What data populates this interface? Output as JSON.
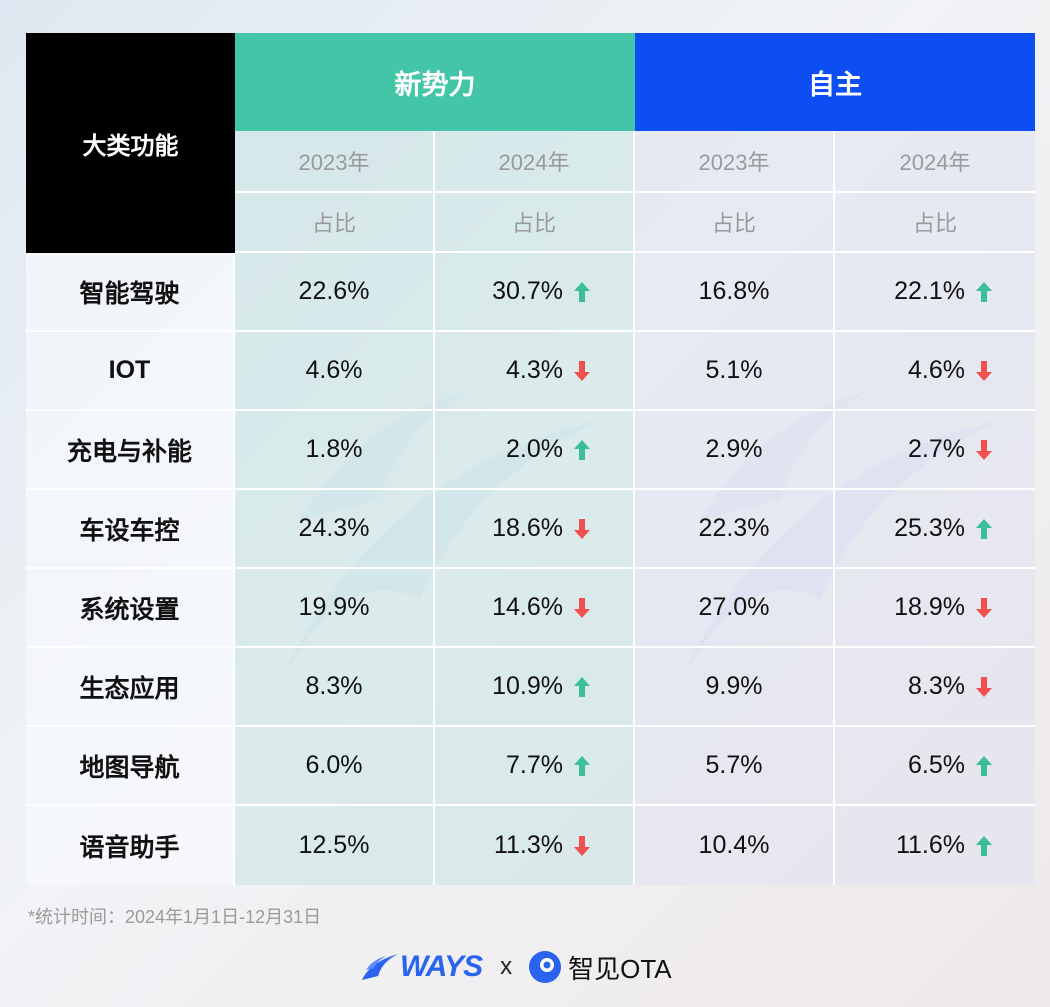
{
  "header": {
    "corner_label": "大类功能",
    "groups": [
      "新势力",
      "自主"
    ],
    "years": [
      "2023年",
      "2024年",
      "2023年",
      "2024年"
    ],
    "metric": "占比"
  },
  "chart_data": {
    "type": "table",
    "categories": [
      "智能驾驶",
      "IOT",
      "充电与补能",
      "车设车控",
      "系统设置",
      "生态应用",
      "地图导航",
      "语音助手"
    ],
    "series": [
      {
        "name": "新势力 2023年",
        "values": [
          "22.6%",
          "4.6%",
          "1.8%",
          "24.3%",
          "19.9%",
          "8.3%",
          "6.0%",
          "12.5%"
        ]
      },
      {
        "name": "新势力 2024年",
        "values": [
          "30.7%",
          "4.3%",
          "2.0%",
          "18.6%",
          "14.6%",
          "10.9%",
          "7.7%",
          "11.3%"
        ],
        "trend": [
          "up",
          "down",
          "up",
          "down",
          "down",
          "up",
          "up",
          "down"
        ]
      },
      {
        "name": "自主 2023年",
        "values": [
          "16.8%",
          "5.1%",
          "2.9%",
          "22.3%",
          "27.0%",
          "9.9%",
          "5.7%",
          "10.4%"
        ]
      },
      {
        "name": "自主 2024年",
        "values": [
          "22.1%",
          "4.6%",
          "2.7%",
          "25.3%",
          "18.9%",
          "8.3%",
          "6.5%",
          "11.6%"
        ],
        "trend": [
          "up",
          "down",
          "down",
          "up",
          "down",
          "down",
          "up",
          "up"
        ]
      }
    ]
  },
  "colors": {
    "new_header": "#43c5a8",
    "own_header": "#0c4ef2",
    "up": "#3cbf98",
    "down": "#f0514f"
  },
  "footnote": "*统计时间：2024年1月1日-12月31日",
  "brand": {
    "ways": "WAYS",
    "x": "x",
    "partner": "智见OTA"
  }
}
